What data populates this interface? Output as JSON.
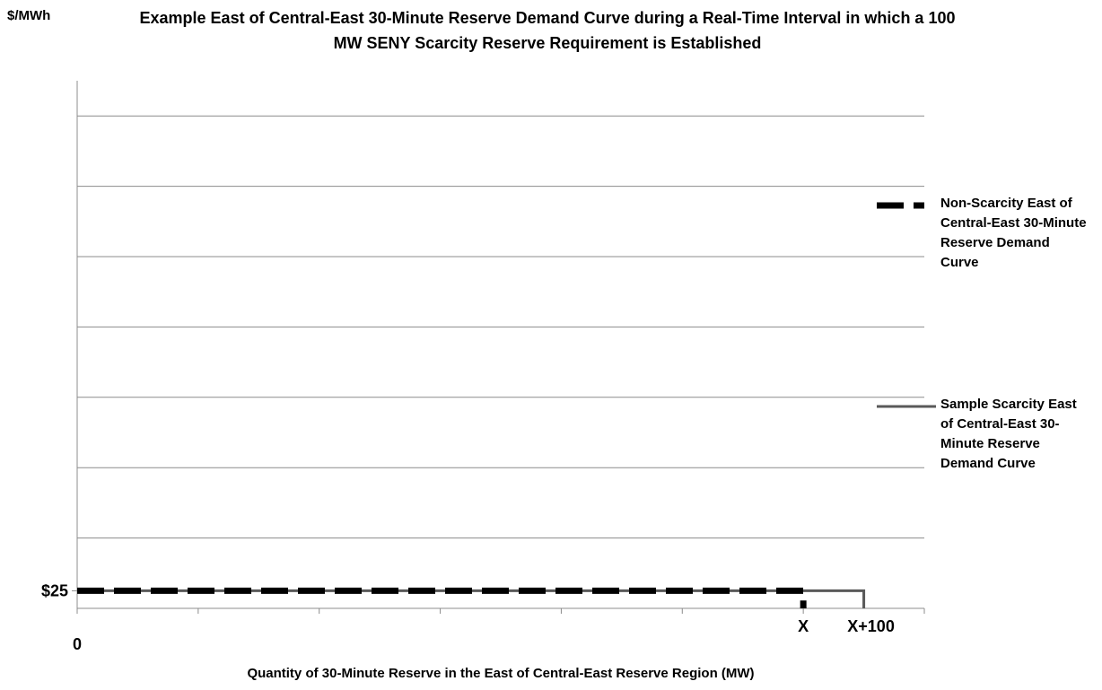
{
  "chart_data": {
    "type": "line",
    "title": "Example East of Central-East 30-Minute Reserve Demand Curve during a Real-Time Interval in which a 100 MW SENY Scarcity Reserve Requirement is Established",
    "y_axis_label": "$/MWh",
    "x_axis_label": "Quantity of 30-Minute Reserve in the East of Central-East Reserve Region (MW)",
    "xlim": [
      0,
      1400
    ],
    "ylim": [
      0,
      750
    ],
    "xticks": [
      {
        "value": 0,
        "label": "0"
      },
      {
        "value": 1200,
        "label": "X"
      },
      {
        "value": 1300,
        "label": "X+100"
      }
    ],
    "xtick_marks": [
      0,
      200,
      400,
      600,
      800,
      1000,
      1200,
      1400
    ],
    "yticks": [
      {
        "value": 25,
        "label": "$25"
      }
    ],
    "ygrid": [
      100,
      200,
      300,
      400,
      500,
      600,
      700
    ],
    "grid": true,
    "legend": "right",
    "series": [
      {
        "name": "Non-Scarcity East of Central-East 30-Minute Reserve Demand Curve",
        "color": "#000000",
        "dashed": true,
        "x": [
          0,
          1200,
          1200
        ],
        "values": [
          25,
          25,
          0
        ]
      },
      {
        "name": "Sample Scarcity East of Central-East 30-Minute Reserve Demand Curve",
        "color": "#595959",
        "dashed": false,
        "x": [
          0,
          1300,
          1300
        ],
        "values": [
          25,
          25,
          0
        ]
      }
    ]
  }
}
